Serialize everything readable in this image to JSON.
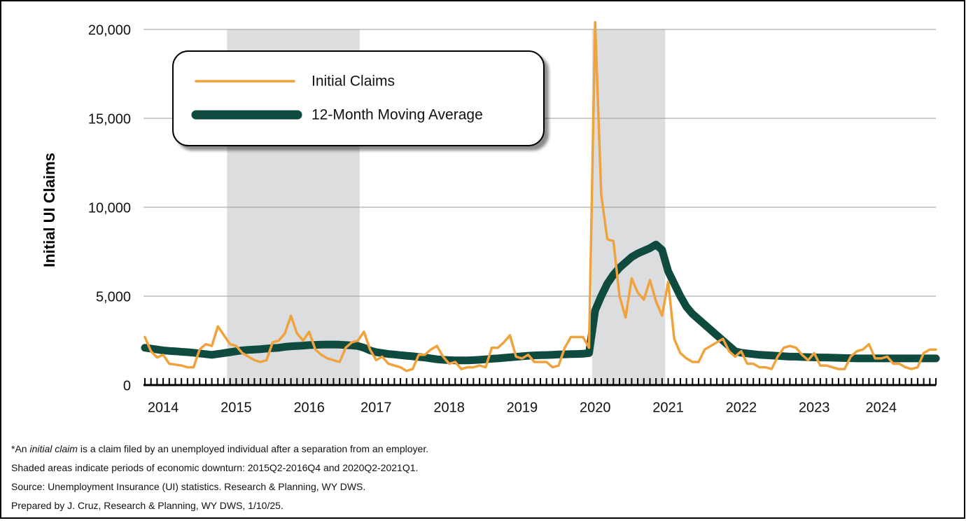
{
  "chart_data": {
    "type": "line",
    "y_axis_label": "Initial UI Claims",
    "categories": [
      null,
      null,
      null,
      "2014",
      null,
      null,
      null,
      null,
      null,
      null,
      null,
      null,
      null,
      null,
      null,
      "2015",
      null,
      null,
      null,
      null,
      null,
      null,
      null,
      null,
      null,
      null,
      null,
      "2016",
      null,
      null,
      null,
      null,
      null,
      null,
      null,
      null,
      null,
      null,
      "2017",
      null,
      null,
      null,
      null,
      null,
      null,
      null,
      null,
      null,
      null,
      null,
      "2018",
      null,
      null,
      null,
      null,
      null,
      null,
      null,
      null,
      null,
      null,
      null,
      "2019",
      null,
      null,
      null,
      null,
      null,
      null,
      null,
      null,
      null,
      null,
      null,
      "2020",
      null,
      null,
      null,
      null,
      null,
      null,
      null,
      null,
      null,
      null,
      null,
      "2021",
      null,
      null,
      null,
      null,
      null,
      null,
      null,
      null,
      null,
      null,
      null,
      "2022",
      null,
      null,
      null,
      null,
      null,
      null,
      null,
      null,
      null,
      null,
      null,
      "2023",
      null,
      null,
      null,
      null,
      null,
      null,
      null,
      null,
      null,
      null,
      "2024",
      null,
      null,
      null,
      null,
      null,
      null,
      null,
      null,
      null
    ],
    "series": [
      {
        "name": "Initial Claims",
        "color": "#f0a23c",
        "values": [
          2700,
          1900,
          1550,
          1700,
          1200,
          1150,
          1100,
          1000,
          1000,
          2000,
          2300,
          2200,
          3300,
          2800,
          2300,
          2200,
          1800,
          1600,
          1400,
          1300,
          1400,
          2400,
          2500,
          2900,
          3900,
          2900,
          2500,
          3000,
          2000,
          1700,
          1500,
          1400,
          1300,
          2100,
          2400,
          2500,
          3000,
          2000,
          1400,
          1600,
          1200,
          1100,
          1000,
          800,
          900,
          1700,
          1700,
          2000,
          2200,
          1600,
          1200,
          1300,
          900,
          1000,
          1000,
          1100,
          1000,
          2100,
          2100,
          2400,
          2800,
          1600,
          1500,
          1700,
          1300,
          1300,
          1300,
          1000,
          1100,
          2100,
          2700,
          2700,
          2700,
          2100,
          20400,
          10700,
          8200,
          8100,
          5000,
          3800,
          6000,
          5200,
          4800,
          5900,
          4700,
          3900,
          5800,
          2600,
          1800,
          1500,
          1300,
          1300,
          2000,
          2200,
          2400,
          2600,
          1900,
          1600,
          1900,
          1200,
          1200,
          1000,
          1000,
          900,
          1600,
          2100,
          2200,
          2100,
          1700,
          1400,
          1800,
          1100,
          1100,
          1000,
          900,
          900,
          1600,
          1900,
          2000,
          2300,
          1500,
          1500,
          1600,
          1200,
          1200,
          1000,
          900,
          1000,
          1800,
          2000,
          2000
        ]
      },
      {
        "name": "12-Month Moving Average",
        "color": "#0e4a3d",
        "values": [
          2100,
          2050,
          2000,
          1950,
          1920,
          1900,
          1870,
          1850,
          1820,
          1780,
          1740,
          1700,
          1750,
          1800,
          1850,
          1900,
          1950,
          1980,
          2000,
          2020,
          2050,
          2080,
          2100,
          2150,
          2180,
          2200,
          2220,
          2250,
          2260,
          2270,
          2280,
          2280,
          2270,
          2250,
          2230,
          2200,
          2100,
          1950,
          1850,
          1800,
          1750,
          1720,
          1680,
          1650,
          1620,
          1580,
          1550,
          1500,
          1450,
          1420,
          1400,
          1390,
          1390,
          1390,
          1400,
          1420,
          1450,
          1480,
          1500,
          1530,
          1560,
          1590,
          1620,
          1650,
          1670,
          1680,
          1690,
          1700,
          1720,
          1730,
          1740,
          1750,
          1760,
          1800,
          4200,
          5000,
          5700,
          6200,
          6600,
          6900,
          7200,
          7400,
          7550,
          7700,
          7900,
          7600,
          6400,
          5700,
          5000,
          4400,
          4000,
          3700,
          3400,
          3100,
          2800,
          2500,
          2200,
          1900,
          1820,
          1780,
          1740,
          1700,
          1680,
          1660,
          1640,
          1620,
          1600,
          1600,
          1580,
          1570,
          1560,
          1550,
          1550,
          1540,
          1530,
          1520,
          1510,
          1500,
          1500,
          1500,
          1500,
          1500,
          1500,
          1500,
          1500,
          1500,
          1500,
          1500,
          1500,
          1500,
          1500
        ]
      }
    ],
    "shaded_ranges": [
      [
        13.5,
        35.3
      ],
      [
        73.5,
        85.5
      ]
    ],
    "shade_color": "#dcdddf",
    "ylim": [
      0,
      20000
    ],
    "yticks": [
      0,
      {
        "value": 5000,
        "label": "5,000"
      },
      {
        "value": 10000,
        "label": "10,000"
      },
      {
        "value": 15000,
        "label": "15,000"
      },
      {
        "value": 20000,
        "label": "20,000"
      }
    ],
    "grid": true,
    "notes": {
      "lead": "*An ",
      "term": "initial claim",
      "rest": " is a claim filed by an unemployed individual after a separation from an employer.",
      "lines": [
        "Shaded areas indicate periods of economic downturn: 2015Q2-2016Q4 and 2020Q2-2021Q1.",
        "Source: Unemployment Insurance (UI) statistics. Research & Planning, WY DWS.",
        "Prepared by J. Cruz, Research & Planning, WY DWS, 1/10/25."
      ]
    }
  }
}
